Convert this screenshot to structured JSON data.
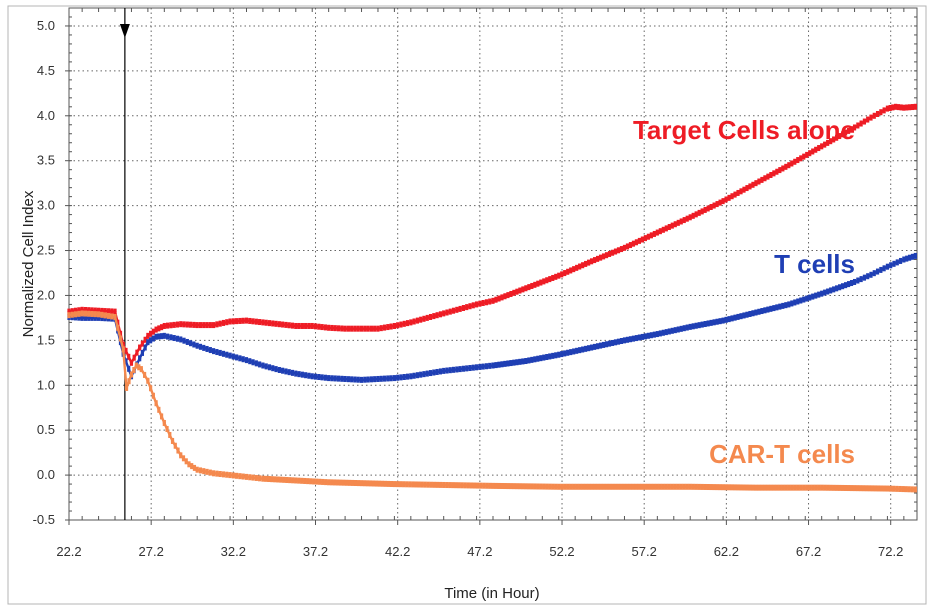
{
  "chart_data": {
    "type": "line",
    "title": "",
    "xlabel": "Time (in Hour)",
    "ylabel": "Normalized Cell Index",
    "xlim": [
      22.2,
      73.8
    ],
    "ylim": [
      -0.5,
      5.2
    ],
    "x_ticks": [
      22.2,
      27.2,
      32.2,
      37.2,
      42.2,
      47.2,
      52.2,
      57.2,
      62.2,
      67.2,
      72.2
    ],
    "x_tick_labels": [
      "22.2",
      "27.2",
      "32.2",
      "37.2",
      "42.2",
      "47.2",
      "52.2",
      "57.2",
      "62.2",
      "67.2",
      "72.2"
    ],
    "y_ticks": [
      -0.5,
      0.0,
      0.5,
      1.0,
      1.5,
      2.0,
      2.5,
      3.0,
      3.5,
      4.0,
      4.5,
      5.0
    ],
    "y_tick_labels": [
      "-0.5",
      "0.0",
      "0.5",
      "1.0",
      "1.5",
      "2.0",
      "2.5",
      "3.0",
      "3.5",
      "4.0",
      "4.5",
      "5.0"
    ],
    "grid": true,
    "marker_x": 25.6,
    "series": [
      {
        "name": "Target Cells alone",
        "color": "#ee1c25",
        "x": [
          22.2,
          23.0,
          24.0,
          25.0,
          25.5,
          26.0,
          26.5,
          27.0,
          27.5,
          28.0,
          29.0,
          30.0,
          31.0,
          32.0,
          33.0,
          34.0,
          35.0,
          36.0,
          37.0,
          38.0,
          39.0,
          40.0,
          41.0,
          42.0,
          43.0,
          44.0,
          45.0,
          46.0,
          47.0,
          48.0,
          50.0,
          52.0,
          54.0,
          56.0,
          58.0,
          60.0,
          62.0,
          64.0,
          66.0,
          68.0,
          70.0,
          71.0,
          72.0,
          72.5,
          73.0,
          73.7
        ],
        "y": [
          1.82,
          1.84,
          1.83,
          1.82,
          1.45,
          1.25,
          1.42,
          1.55,
          1.62,
          1.66,
          1.68,
          1.67,
          1.67,
          1.71,
          1.72,
          1.7,
          1.68,
          1.66,
          1.66,
          1.64,
          1.63,
          1.63,
          1.63,
          1.66,
          1.7,
          1.75,
          1.8,
          1.85,
          1.9,
          1.94,
          2.08,
          2.22,
          2.38,
          2.53,
          2.7,
          2.87,
          3.05,
          3.25,
          3.45,
          3.66,
          3.87,
          3.98,
          4.08,
          4.1,
          4.09,
          4.1
        ]
      },
      {
        "name": "T cells",
        "color": "#1f3fb4",
        "x": [
          22.2,
          23.0,
          24.0,
          25.0,
          25.5,
          26.0,
          26.5,
          27.0,
          27.5,
          28.0,
          29.0,
          30.0,
          31.0,
          32.0,
          33.0,
          34.0,
          35.0,
          36.0,
          37.0,
          38.0,
          39.0,
          40.0,
          41.0,
          42.0,
          43.0,
          44.0,
          45.0,
          46.0,
          47.0,
          48.0,
          50.0,
          52.0,
          54.0,
          56.0,
          58.0,
          60.0,
          62.0,
          64.0,
          66.0,
          68.0,
          70.0,
          71.0,
          72.0,
          73.0,
          73.7
        ],
        "y": [
          1.76,
          1.75,
          1.75,
          1.74,
          1.35,
          1.1,
          1.3,
          1.48,
          1.54,
          1.55,
          1.51,
          1.44,
          1.38,
          1.33,
          1.28,
          1.22,
          1.17,
          1.13,
          1.1,
          1.08,
          1.07,
          1.06,
          1.07,
          1.08,
          1.1,
          1.13,
          1.16,
          1.18,
          1.2,
          1.22,
          1.27,
          1.34,
          1.42,
          1.5,
          1.57,
          1.65,
          1.72,
          1.81,
          1.9,
          2.02,
          2.15,
          2.23,
          2.32,
          2.4,
          2.44
        ]
      },
      {
        "name": "CAR-T cells",
        "color": "#f4894e",
        "x": [
          22.2,
          23.0,
          24.0,
          25.0,
          25.5,
          25.7,
          26.0,
          26.3,
          26.6,
          27.0,
          27.5,
          28.0,
          28.5,
          29.0,
          29.5,
          30.0,
          31.0,
          32.0,
          33.0,
          34.0,
          36.0,
          38.0,
          40.0,
          42.0,
          45.0,
          48.0,
          52.0,
          56.0,
          60.0,
          64.0,
          68.0,
          72.0,
          73.7
        ],
        "y": [
          1.78,
          1.8,
          1.79,
          1.76,
          1.4,
          0.97,
          1.12,
          1.22,
          1.18,
          1.05,
          0.8,
          0.58,
          0.38,
          0.22,
          0.12,
          0.06,
          0.02,
          0.0,
          -0.02,
          -0.04,
          -0.06,
          -0.08,
          -0.09,
          -0.1,
          -0.11,
          -0.12,
          -0.13,
          -0.13,
          -0.13,
          -0.14,
          -0.14,
          -0.15,
          -0.16
        ]
      }
    ],
    "series_label_text": [
      "Target Cells alone",
      "T cells",
      "CAR-T cells"
    ]
  }
}
